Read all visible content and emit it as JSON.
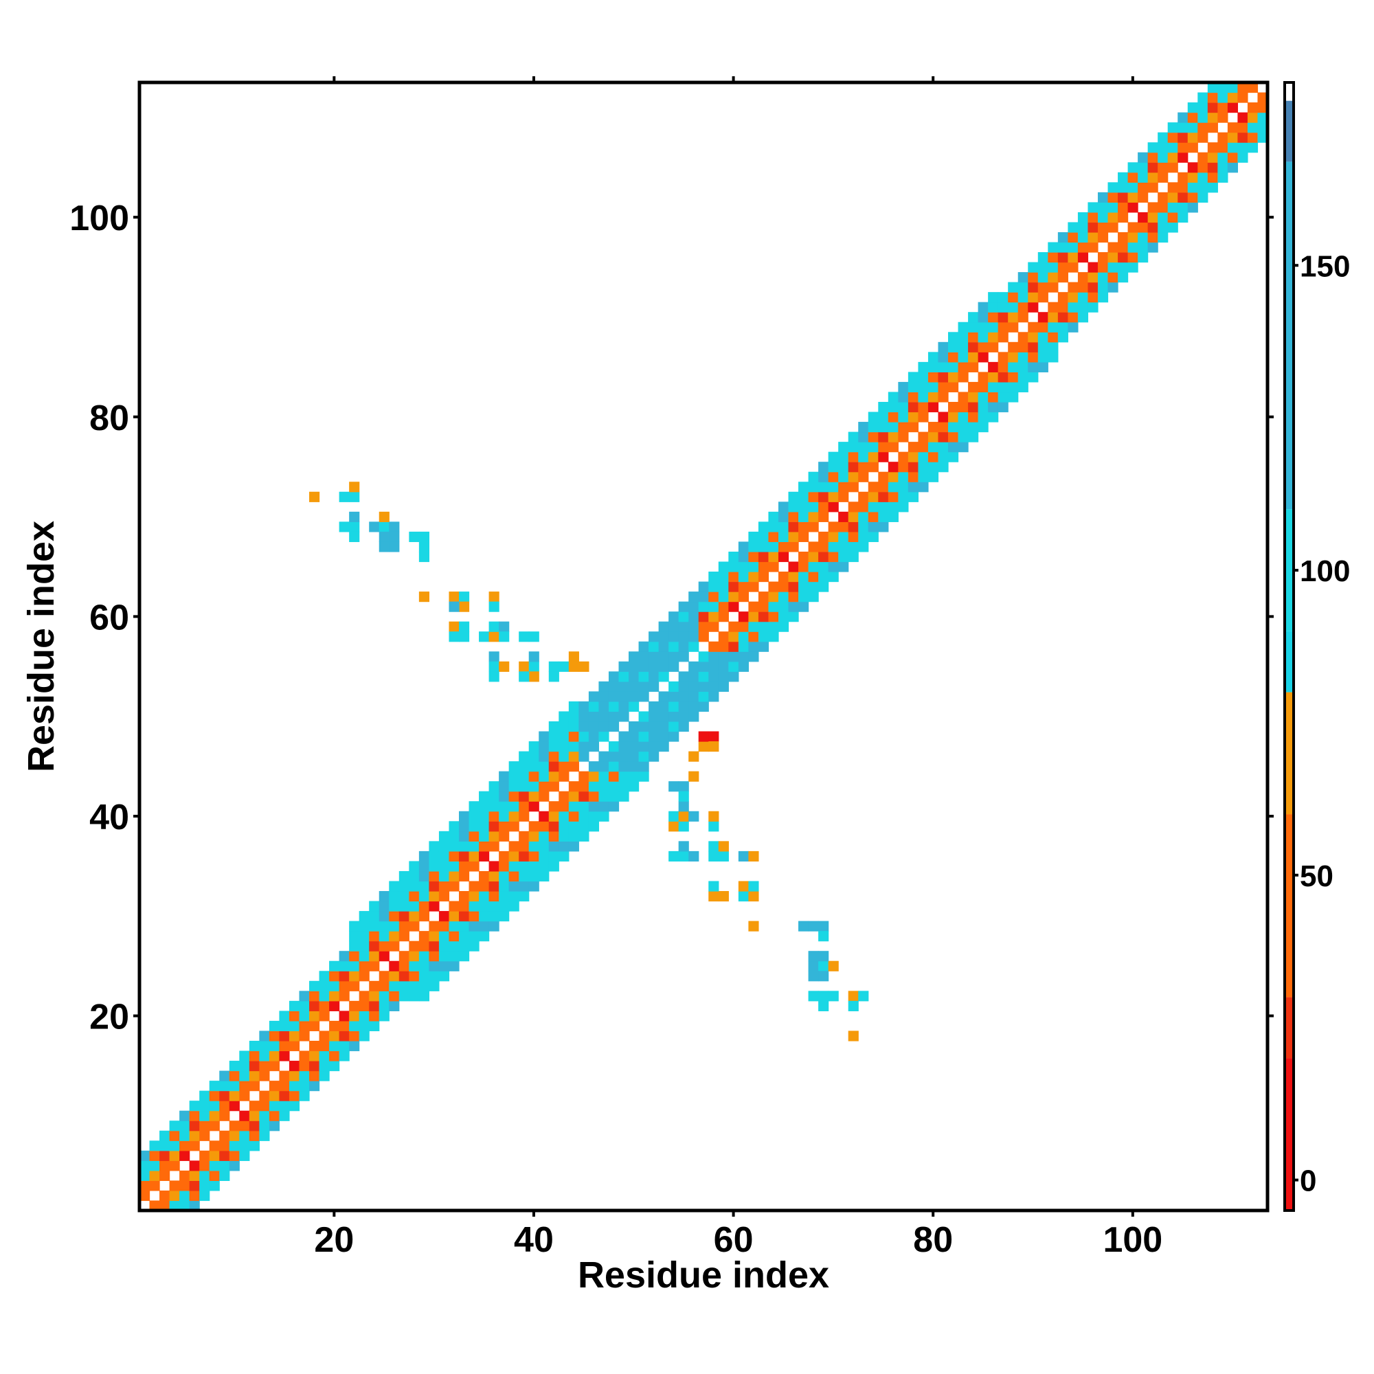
{
  "chart_data": {
    "type": "heatmap",
    "title": "",
    "xlabel": "Residue index",
    "ylabel": "Residue index",
    "xlim": [
      0.5,
      113.5
    ],
    "ylim": [
      0.5,
      113.5
    ],
    "xticks": [
      20,
      40,
      60,
      80,
      100
    ],
    "yticks": [
      20,
      40,
      60,
      80,
      100
    ],
    "grid": false,
    "colorbar": {
      "ticks": [
        0,
        50,
        100,
        150
      ],
      "range": [
        -5,
        180
      ],
      "color_bands": [
        {
          "from": -5,
          "to": 20,
          "color": "#ee1111"
        },
        {
          "from": 20,
          "to": 30,
          "color": "#ee3311"
        },
        {
          "from": 30,
          "to": 60,
          "color": "#ff6a0a"
        },
        {
          "from": 60,
          "to": 80,
          "color": "#f59a0a"
        },
        {
          "from": 80,
          "to": 90,
          "color": "#19d2e6"
        },
        {
          "from": 90,
          "to": 110,
          "color": "#1ad7e4"
        },
        {
          "from": 110,
          "to": 167,
          "color": "#33b5d8"
        },
        {
          "from": 167,
          "to": 177,
          "color": "#4682b4"
        },
        {
          "from": 177,
          "to": 180,
          "color": "#ffffff"
        }
      ]
    },
    "diagonal_band": [
      {
        "from": 1,
        "to": 21,
        "halfwidth": 5,
        "pattern": "helix"
      },
      {
        "from": 21,
        "to": 44,
        "halfwidth": 7,
        "pattern": "helix"
      },
      {
        "from": 44,
        "to": 56,
        "halfwidth": 6,
        "pattern": "core"
      },
      {
        "from": 56,
        "to": 86,
        "halfwidth": 6,
        "pattern": "helix"
      },
      {
        "from": 86,
        "to": 113,
        "halfwidth": 5,
        "pattern": "helix"
      }
    ],
    "offdiagonal_cells": [
      {
        "x": 18,
        "y": 72,
        "v": 70
      },
      {
        "x": 21,
        "y": 72,
        "v": 95
      },
      {
        "x": 22,
        "y": 72,
        "v": 95
      },
      {
        "x": 22,
        "y": 73,
        "v": 70
      },
      {
        "x": 21,
        "y": 69,
        "v": 95
      },
      {
        "x": 22,
        "y": 69,
        "v": 95
      },
      {
        "x": 22,
        "y": 70,
        "v": 120
      },
      {
        "x": 22,
        "y": 68,
        "v": 95
      },
      {
        "x": 24,
        "y": 69,
        "v": 120
      },
      {
        "x": 25,
        "y": 69,
        "v": 95
      },
      {
        "x": 25,
        "y": 70,
        "v": 70
      },
      {
        "x": 25,
        "y": 68,
        "v": 120
      },
      {
        "x": 26,
        "y": 69,
        "v": 120
      },
      {
        "x": 26,
        "y": 68,
        "v": 120
      },
      {
        "x": 26,
        "y": 67,
        "v": 120
      },
      {
        "x": 25,
        "y": 67,
        "v": 120
      },
      {
        "x": 28,
        "y": 68,
        "v": 95
      },
      {
        "x": 29,
        "y": 68,
        "v": 95
      },
      {
        "x": 29,
        "y": 67,
        "v": 95
      },
      {
        "x": 29,
        "y": 66,
        "v": 95
      },
      {
        "x": 29,
        "y": 62,
        "v": 70
      },
      {
        "x": 32,
        "y": 62,
        "v": 70
      },
      {
        "x": 33,
        "y": 62,
        "v": 95
      },
      {
        "x": 33,
        "y": 61,
        "v": 70
      },
      {
        "x": 32,
        "y": 61,
        "v": 120
      },
      {
        "x": 36,
        "y": 62,
        "v": 70
      },
      {
        "x": 36,
        "y": 61,
        "v": 95
      },
      {
        "x": 32,
        "y": 59,
        "v": 70
      },
      {
        "x": 33,
        "y": 59,
        "v": 95
      },
      {
        "x": 32,
        "y": 58,
        "v": 95
      },
      {
        "x": 33,
        "y": 58,
        "v": 95
      },
      {
        "x": 35,
        "y": 58,
        "v": 95
      },
      {
        "x": 36,
        "y": 58,
        "v": 70
      },
      {
        "x": 36,
        "y": 59,
        "v": 95
      },
      {
        "x": 37,
        "y": 59,
        "v": 120
      },
      {
        "x": 37,
        "y": 58,
        "v": 95
      },
      {
        "x": 39,
        "y": 58,
        "v": 95
      },
      {
        "x": 40,
        "y": 58,
        "v": 95
      },
      {
        "x": 36,
        "y": 56,
        "v": 120
      },
      {
        "x": 36,
        "y": 55,
        "v": 95
      },
      {
        "x": 37,
        "y": 55,
        "v": 70
      },
      {
        "x": 36,
        "y": 54,
        "v": 95
      },
      {
        "x": 39,
        "y": 55,
        "v": 70
      },
      {
        "x": 40,
        "y": 55,
        "v": 95
      },
      {
        "x": 40,
        "y": 56,
        "v": 120
      },
      {
        "x": 40,
        "y": 54,
        "v": 70
      },
      {
        "x": 39,
        "y": 54,
        "v": 95
      },
      {
        "x": 42,
        "y": 55,
        "v": 95
      },
      {
        "x": 43,
        "y": 55,
        "v": 95
      },
      {
        "x": 44,
        "y": 55,
        "v": 70
      },
      {
        "x": 44,
        "y": 56,
        "v": 70
      },
      {
        "x": 45,
        "y": 55,
        "v": 70
      },
      {
        "x": 42,
        "y": 54,
        "v": 95
      },
      {
        "x": 72,
        "y": 22,
        "v": 70
      },
      {
        "x": 73,
        "y": 22,
        "v": 95
      },
      {
        "x": 72,
        "y": 21,
        "v": 95
      },
      {
        "x": 72,
        "y": 18,
        "v": 70
      },
      {
        "x": 68,
        "y": 22,
        "v": 95
      },
      {
        "x": 69,
        "y": 22,
        "v": 95
      },
      {
        "x": 69,
        "y": 21,
        "v": 95
      },
      {
        "x": 70,
        "y": 22,
        "v": 95
      },
      {
        "x": 68,
        "y": 25,
        "v": 120
      },
      {
        "x": 69,
        "y": 25,
        "v": 95
      },
      {
        "x": 69,
        "y": 24,
        "v": 120
      },
      {
        "x": 70,
        "y": 25,
        "v": 70
      },
      {
        "x": 68,
        "y": 26,
        "v": 120
      },
      {
        "x": 69,
        "y": 26,
        "v": 120
      },
      {
        "x": 68,
        "y": 24,
        "v": 120
      },
      {
        "x": 67,
        "y": 29,
        "v": 120
      },
      {
        "x": 68,
        "y": 29,
        "v": 120
      },
      {
        "x": 69,
        "y": 29,
        "v": 120
      },
      {
        "x": 69,
        "y": 28,
        "v": 95
      },
      {
        "x": 62,
        "y": 29,
        "v": 70
      },
      {
        "x": 58,
        "y": 32,
        "v": 70
      },
      {
        "x": 59,
        "y": 32,
        "v": 70
      },
      {
        "x": 58,
        "y": 33,
        "v": 95
      },
      {
        "x": 61,
        "y": 32,
        "v": 95
      },
      {
        "x": 62,
        "y": 32,
        "v": 70
      },
      {
        "x": 61,
        "y": 33,
        "v": 70
      },
      {
        "x": 62,
        "y": 33,
        "v": 95
      },
      {
        "x": 54,
        "y": 36,
        "v": 95
      },
      {
        "x": 55,
        "y": 36,
        "v": 95
      },
      {
        "x": 55,
        "y": 37,
        "v": 120
      },
      {
        "x": 56,
        "y": 36,
        "v": 120
      },
      {
        "x": 58,
        "y": 36,
        "v": 95
      },
      {
        "x": 59,
        "y": 36,
        "v": 95
      },
      {
        "x": 58,
        "y": 37,
        "v": 95
      },
      {
        "x": 59,
        "y": 37,
        "v": 70
      },
      {
        "x": 61,
        "y": 36,
        "v": 120
      },
      {
        "x": 62,
        "y": 36,
        "v": 70
      },
      {
        "x": 54,
        "y": 39,
        "v": 70
      },
      {
        "x": 55,
        "y": 39,
        "v": 95
      },
      {
        "x": 54,
        "y": 40,
        "v": 95
      },
      {
        "x": 55,
        "y": 40,
        "v": 70
      },
      {
        "x": 55,
        "y": 41,
        "v": 120
      },
      {
        "x": 56,
        "y": 40,
        "v": 150
      },
      {
        "x": 58,
        "y": 39,
        "v": 95
      },
      {
        "x": 58,
        "y": 40,
        "v": 70
      },
      {
        "x": 54,
        "y": 43,
        "v": 120
      },
      {
        "x": 55,
        "y": 43,
        "v": 120
      },
      {
        "x": 55,
        "y": 42,
        "v": 95
      },
      {
        "x": 56,
        "y": 44,
        "v": 70
      },
      {
        "x": 56,
        "y": 46,
        "v": 70
      },
      {
        "x": 57,
        "y": 47,
        "v": 70
      },
      {
        "x": 58,
        "y": 48,
        "v": 0
      },
      {
        "x": 57,
        "y": 48,
        "v": 0
      },
      {
        "x": 58,
        "y": 47,
        "v": 70
      }
    ]
  }
}
